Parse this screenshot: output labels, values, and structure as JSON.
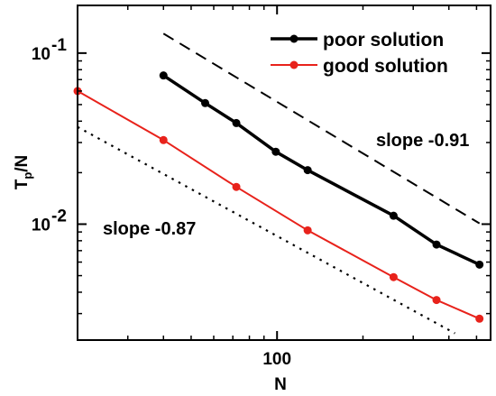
{
  "chart_data": {
    "type": "line",
    "xscale": "log",
    "yscale": "log",
    "xlim": [
      20,
      560
    ],
    "ylim": [
      0.0021,
      0.19
    ],
    "xlabel": "N",
    "ylabel": "T_p/N",
    "x_tick_labels": [
      {
        "value": 100,
        "label": "100"
      }
    ],
    "y_tick_labels": [
      {
        "value": 0.1,
        "base": "10",
        "exp": "-1"
      },
      {
        "value": 0.01,
        "base": "10",
        "exp": "-2"
      }
    ],
    "legend_position": "top-right",
    "grid": false,
    "series": [
      {
        "name": "poor solution",
        "color": "#000000",
        "marker": "circle",
        "line": "solid",
        "x": [
          40,
          56,
          72,
          99,
          128,
          256,
          362,
          512
        ],
        "y": [
          0.074,
          0.051,
          0.039,
          0.0265,
          0.0207,
          0.0112,
          0.0076,
          0.0058
        ]
      },
      {
        "name": "good solution",
        "color": "#e8221b",
        "marker": "circle",
        "line": "solid",
        "x": [
          20,
          40,
          72,
          128,
          256,
          362,
          512
        ],
        "y": [
          0.06,
          0.031,
          0.0165,
          0.0092,
          0.0049,
          0.0036,
          0.0028
        ]
      }
    ],
    "guides": [
      {
        "style": "dashed",
        "x": [
          40,
          512
        ],
        "y": [
          0.13,
          0.0101
        ]
      },
      {
        "style": "dotted",
        "x": [
          20,
          420
        ],
        "y": [
          0.037,
          0.0023
        ]
      }
    ],
    "annotations": [
      {
        "text": "slope -0.91"
      },
      {
        "text": "slope -0.87"
      }
    ]
  }
}
